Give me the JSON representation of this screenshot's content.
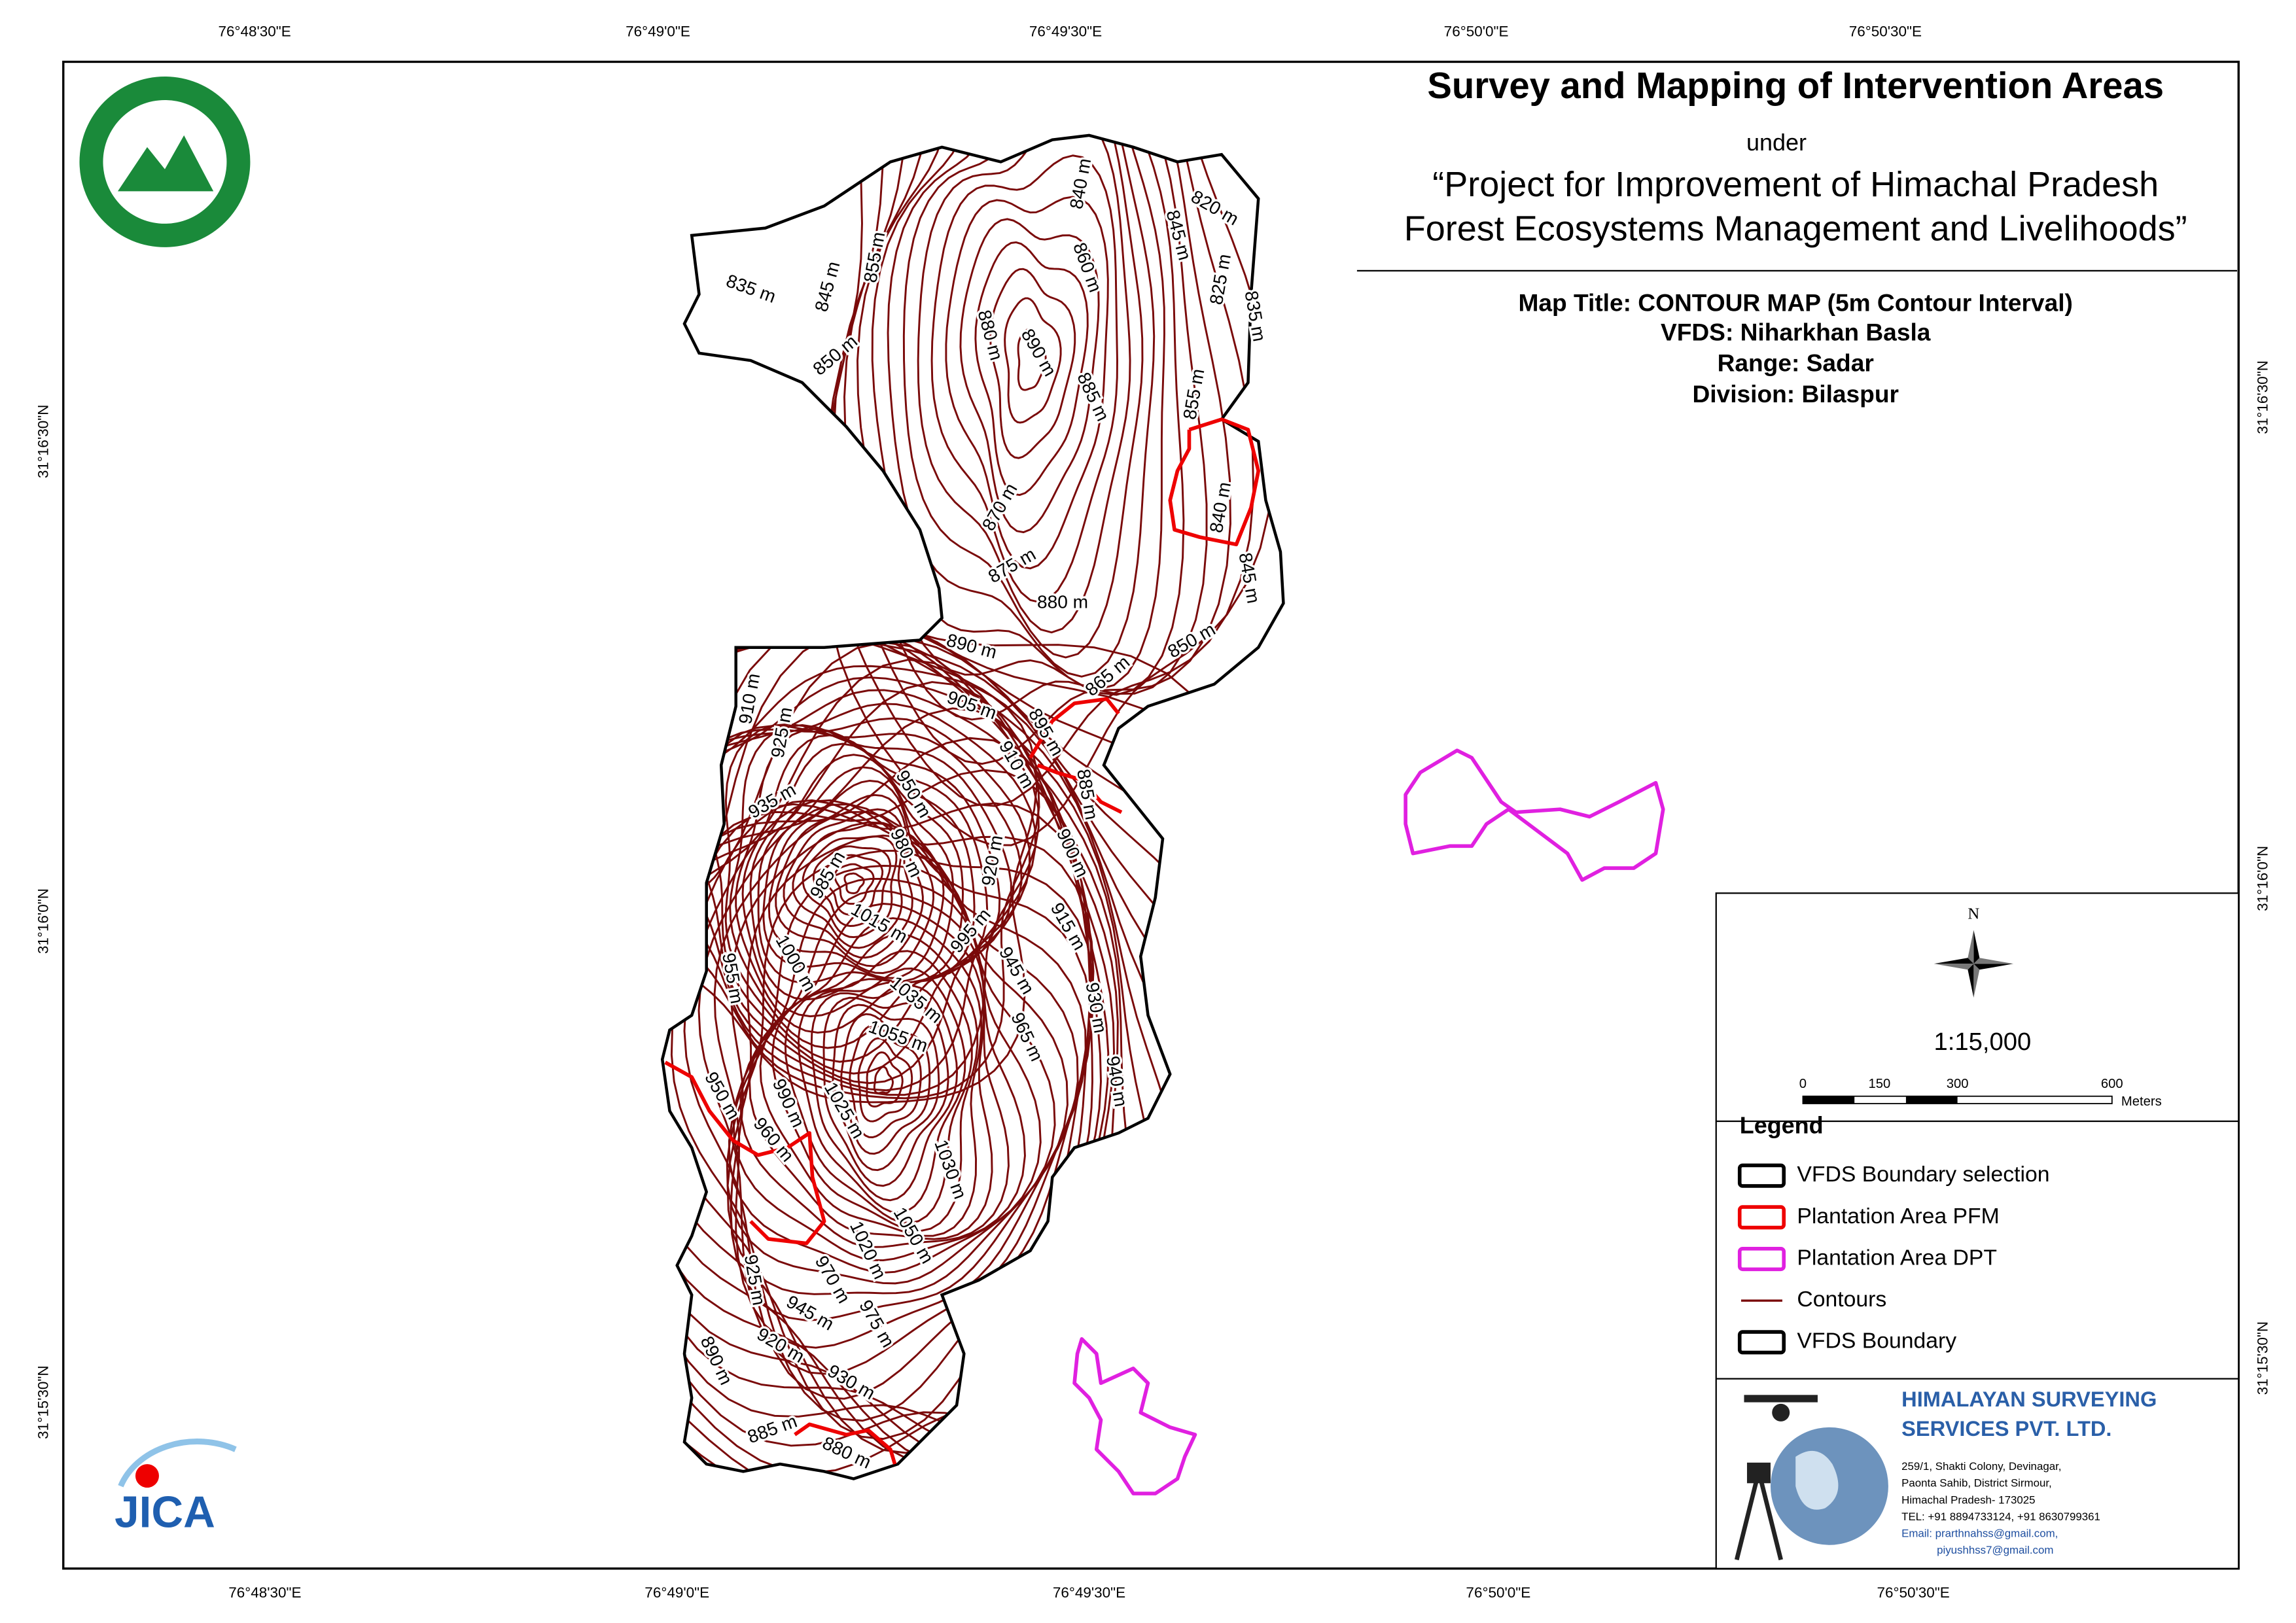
{
  "title": {
    "main": "Survey and Mapping of Intervention Areas",
    "under": "under",
    "project_line1": "“Project for Improvement of Himachal Pradesh",
    "project_line2": "Forest Ecosystems Management and Livelihoods”"
  },
  "map_info": {
    "map_title": "Map Title: CONTOUR MAP (5m Contour Interval)",
    "vfds": "VFDS: Niharkhan Basla",
    "range": "Range: Sadar",
    "division": "Division: Bilaspur"
  },
  "coordinates": {
    "top": [
      "76°48'30\"E",
      "76°49'0\"E",
      "76°49'30\"E",
      "76°50'0\"E",
      "76°50'30\"E"
    ],
    "bottom": [
      "76°48'30\"E",
      "76°49'0\"E",
      "76°49'30\"E",
      "76°50'0\"E",
      "76°50'30\"E"
    ],
    "left": [
      "31°16'30\"N",
      "31°16'0\"N",
      "31°15'30\"N"
    ],
    "right": [
      "31°16'30\"N",
      "31°16'0\"N",
      "31°15'30\"N"
    ]
  },
  "contour_labels": [
    "835 m",
    "845 m",
    "855 m",
    "850 m",
    "840 m",
    "820 m",
    "845 m",
    "860 m",
    "825 m",
    "835 m",
    "880 m",
    "890 m",
    "885 m",
    "855 m",
    "840 m",
    "870 m",
    "875 m",
    "880 m",
    "845 m",
    "850 m",
    "890 m",
    "865 m",
    "905 m",
    "895 m",
    "910 m",
    "910 m",
    "885 m",
    "925 m",
    "935 m",
    "950 m",
    "980 m",
    "920 m",
    "900 m",
    "985 m",
    "1015 m",
    "995 m",
    "915 m",
    "945 m",
    "1000 m",
    "955 m",
    "1035 m",
    "930 m",
    "965 m",
    "1055 m",
    "940 m",
    "950 m",
    "990 m",
    "1025 m",
    "960 m",
    "1030 m",
    "1020 m",
    "1050 m",
    "925 m",
    "970 m",
    "945 m",
    "975 m",
    "920 m",
    "930 m",
    "890 m",
    "885 m",
    "880 m"
  ],
  "north": "N",
  "scale": {
    "ratio": "1:15,000",
    "ticks": [
      "0",
      "150",
      "300",
      "600"
    ],
    "unit": "Meters"
  },
  "legend": {
    "title": "Legend",
    "items": [
      "VFDS Boundary selection",
      "Plantation Area PFM",
      "Plantation Area DPT",
      "Contours",
      "VFDS Boundary"
    ]
  },
  "company": {
    "name_line1": "HIMALAYAN SURVEYING",
    "name_line2": "SERVICES PVT. LTD.",
    "address": [
      "259/1, Shakti Colony, Devinagar,",
      "Paonta Sahib, District Sirmour,",
      "Himachal Pradesh- 173025",
      "TEL: +91 8894733124, +91 8630799361",
      "Email: prarthnahss@gmail.com,",
      "piyushhss7@gmail.com"
    ]
  },
  "logos": {
    "jica": "JICA"
  }
}
